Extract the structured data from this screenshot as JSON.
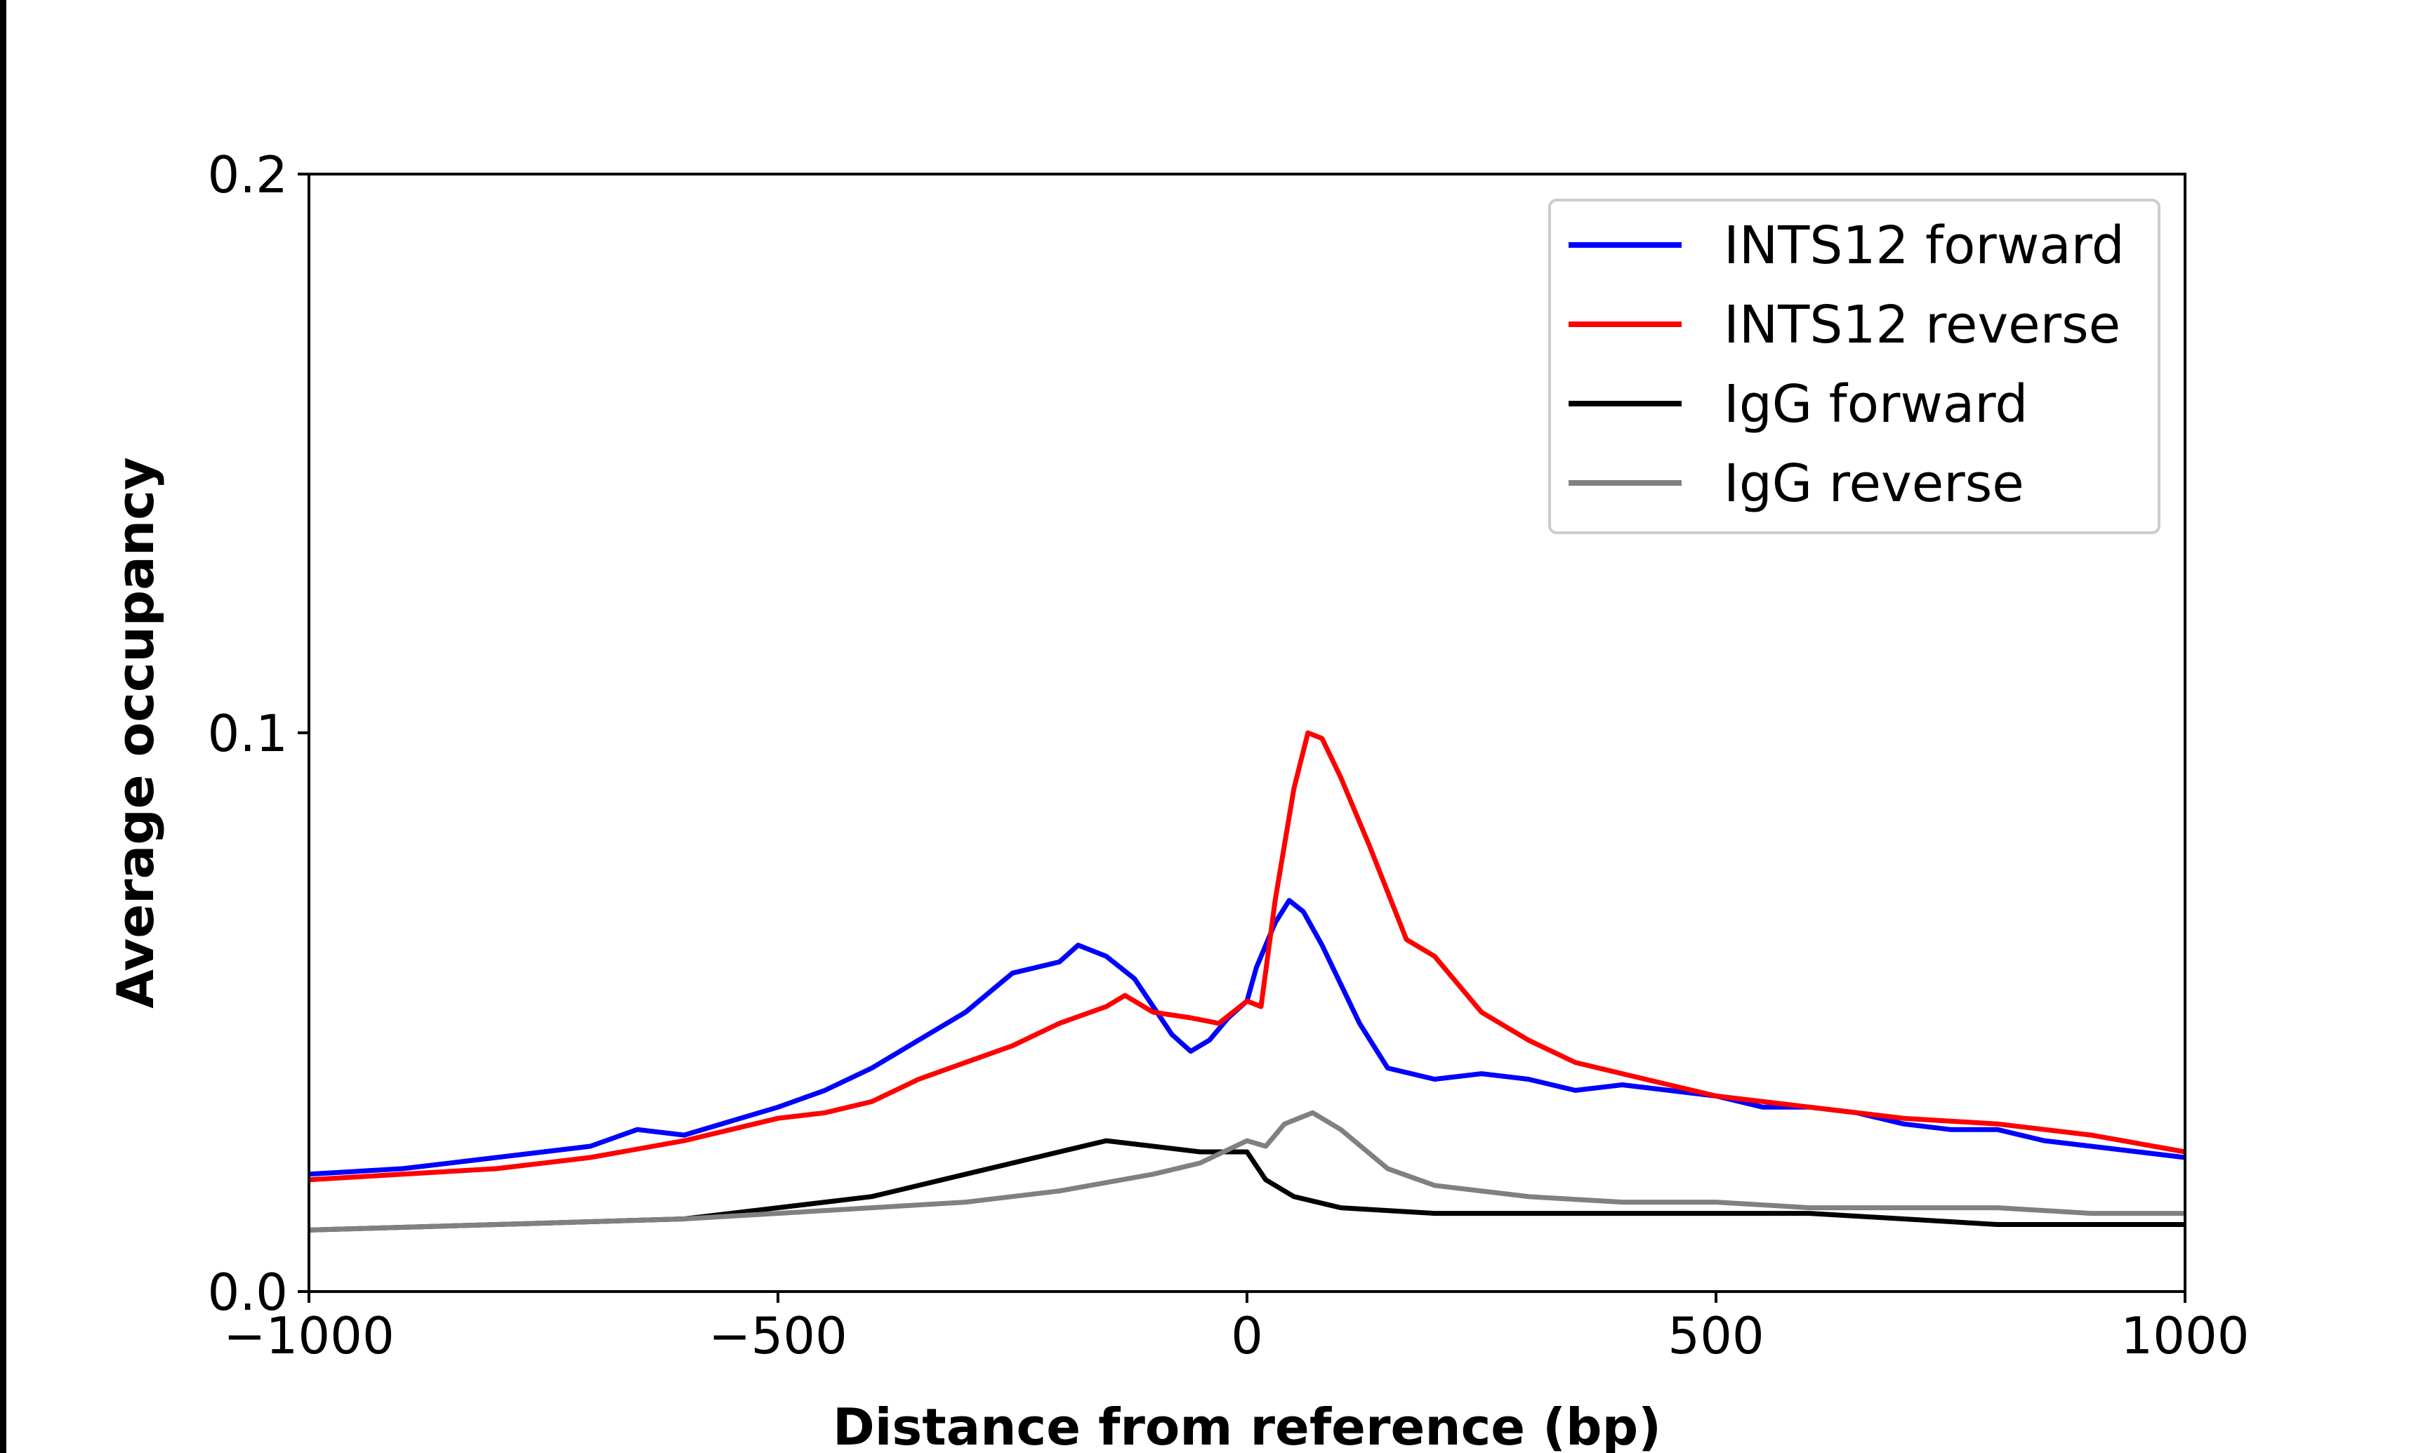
{
  "chart_data": {
    "type": "line",
    "title": "",
    "xlabel": "Distance from reference (bp)",
    "ylabel": "Average occupancy",
    "xlim": [
      -1000,
      1000
    ],
    "ylim": [
      0.0,
      0.2
    ],
    "xticks": [
      -1000,
      -500,
      0,
      500,
      1000
    ],
    "xtick_labels": [
      "−1000",
      "−500",
      "0",
      "500",
      "1000"
    ],
    "yticks": [
      0.0,
      0.1,
      0.2
    ],
    "ytick_labels": [
      "0.0",
      "0.1",
      "0.2"
    ],
    "grid": false,
    "legend_placement": "top-right",
    "series": [
      {
        "name": "INTS12 forward",
        "color": "#0000ff",
        "x": [
          -1000,
          -900,
          -800,
          -700,
          -650,
          -600,
          -500,
          -450,
          -400,
          -350,
          -300,
          -250,
          -200,
          -180,
          -150,
          -120,
          -100,
          -80,
          -60,
          -40,
          -20,
          0,
          10,
          30,
          45,
          60,
          80,
          100,
          120,
          150,
          200,
          250,
          300,
          350,
          400,
          450,
          500,
          550,
          600,
          650,
          700,
          750,
          800,
          850,
          900,
          950,
          1000
        ],
        "y": [
          0.021,
          0.022,
          0.024,
          0.026,
          0.029,
          0.028,
          0.033,
          0.036,
          0.04,
          0.045,
          0.05,
          0.057,
          0.059,
          0.062,
          0.06,
          0.056,
          0.051,
          0.046,
          0.043,
          0.045,
          0.049,
          0.052,
          0.058,
          0.066,
          0.07,
          0.068,
          0.062,
          0.055,
          0.048,
          0.04,
          0.038,
          0.039,
          0.038,
          0.036,
          0.037,
          0.036,
          0.035,
          0.033,
          0.033,
          0.032,
          0.03,
          0.029,
          0.029,
          0.027,
          0.026,
          0.025,
          0.024
        ]
      },
      {
        "name": "INTS12 reverse",
        "color": "#ff0000",
        "x": [
          -1000,
          -900,
          -800,
          -700,
          -600,
          -550,
          -500,
          -450,
          -400,
          -350,
          -300,
          -250,
          -200,
          -150,
          -130,
          -100,
          -60,
          -30,
          0,
          15,
          30,
          50,
          65,
          80,
          100,
          130,
          170,
          200,
          250,
          300,
          350,
          400,
          450,
          500,
          600,
          700,
          800,
          900,
          1000
        ],
        "y": [
          0.02,
          0.021,
          0.022,
          0.024,
          0.027,
          0.029,
          0.031,
          0.032,
          0.034,
          0.038,
          0.041,
          0.044,
          0.048,
          0.051,
          0.053,
          0.05,
          0.049,
          0.048,
          0.052,
          0.051,
          0.07,
          0.09,
          0.1,
          0.099,
          0.092,
          0.08,
          0.063,
          0.06,
          0.05,
          0.045,
          0.041,
          0.039,
          0.037,
          0.035,
          0.033,
          0.031,
          0.03,
          0.028,
          0.025
        ]
      },
      {
        "name": "IgG forward",
        "color": "#000000",
        "x": [
          -1000,
          -800,
          -700,
          -600,
          -500,
          -400,
          -300,
          -200,
          -150,
          -100,
          -50,
          0,
          20,
          50,
          100,
          200,
          300,
          400,
          500,
          600,
          700,
          800,
          900,
          1000
        ],
        "y": [
          0.011,
          0.012,
          0.0125,
          0.013,
          0.015,
          0.017,
          0.021,
          0.025,
          0.027,
          0.026,
          0.025,
          0.025,
          0.02,
          0.017,
          0.015,
          0.014,
          0.014,
          0.014,
          0.014,
          0.014,
          0.013,
          0.012,
          0.012,
          0.012
        ]
      },
      {
        "name": "IgG reverse",
        "color": "#808080",
        "x": [
          -1000,
          -800,
          -600,
          -500,
          -400,
          -300,
          -200,
          -100,
          -50,
          0,
          20,
          40,
          70,
          100,
          150,
          200,
          300,
          400,
          500,
          600,
          700,
          800,
          900,
          1000
        ],
        "y": [
          0.011,
          0.012,
          0.013,
          0.014,
          0.015,
          0.016,
          0.018,
          0.021,
          0.023,
          0.027,
          0.026,
          0.03,
          0.032,
          0.029,
          0.022,
          0.019,
          0.017,
          0.016,
          0.016,
          0.015,
          0.015,
          0.015,
          0.014,
          0.014
        ]
      }
    ]
  }
}
